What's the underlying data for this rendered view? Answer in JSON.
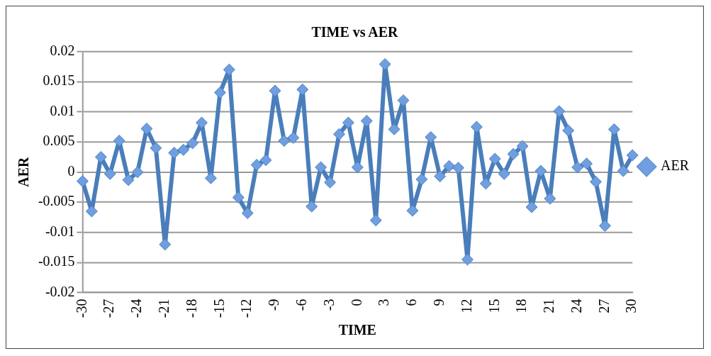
{
  "chart_data": {
    "type": "line",
    "title": "TIME vs AER",
    "xlabel": "TIME",
    "ylabel": "AER",
    "categories": [
      "-30",
      null,
      null,
      "-27",
      null,
      null,
      "-24",
      null,
      null,
      "-21",
      null,
      null,
      "-18",
      null,
      null,
      "-15",
      null,
      null,
      "-12",
      null,
      null,
      "-9",
      null,
      null,
      "-6",
      null,
      null,
      "-3",
      null,
      null,
      "0",
      null,
      null,
      "3",
      null,
      null,
      "6",
      null,
      null,
      "9",
      null,
      null,
      "12",
      null,
      null,
      "15",
      null,
      null,
      "18",
      null,
      null,
      "21",
      null,
      null,
      "24",
      null,
      null,
      "27",
      null,
      null,
      "30"
    ],
    "series": [
      {
        "name": "AER",
        "color": "#4a7ebb",
        "values": [
          -0.0015,
          -0.0065,
          0.0025,
          -0.0003,
          0.0052,
          -0.0013,
          0,
          0.0072,
          0.004,
          -0.012,
          0.0032,
          0.0037,
          0.0048,
          0.0082,
          -0.001,
          0.0132,
          0.017,
          -0.0042,
          -0.0068,
          0.0012,
          0.002,
          0.0135,
          0.0052,
          0.0057,
          0.0137,
          -0.0057,
          0.0008,
          -0.0017,
          0.0063,
          0.0082,
          0.0008,
          0.0085,
          -0.008,
          0.0179,
          0.0071,
          0.0119,
          -0.0064,
          -0.0012,
          0.0058,
          -0.0007,
          0.001,
          0.0007,
          -0.0145,
          0.0075,
          -0.0019,
          0.0022,
          -0.0003,
          0.003,
          0.0043,
          -0.0058,
          0.0002,
          -0.0044,
          0.0101,
          0.0069,
          0.0008,
          0.0014,
          -0.0016,
          -0.0089,
          0.0071,
          0.0002,
          0.0028
        ]
      }
    ],
    "ylim": [
      -0.02,
      0.02
    ],
    "yticks": [
      0.02,
      0.015,
      0.01,
      0.005,
      0,
      -0.005,
      -0.01,
      -0.015,
      -0.02
    ],
    "grid": "y",
    "legend": "right",
    "marker": "diamond",
    "line_style": "solid"
  }
}
